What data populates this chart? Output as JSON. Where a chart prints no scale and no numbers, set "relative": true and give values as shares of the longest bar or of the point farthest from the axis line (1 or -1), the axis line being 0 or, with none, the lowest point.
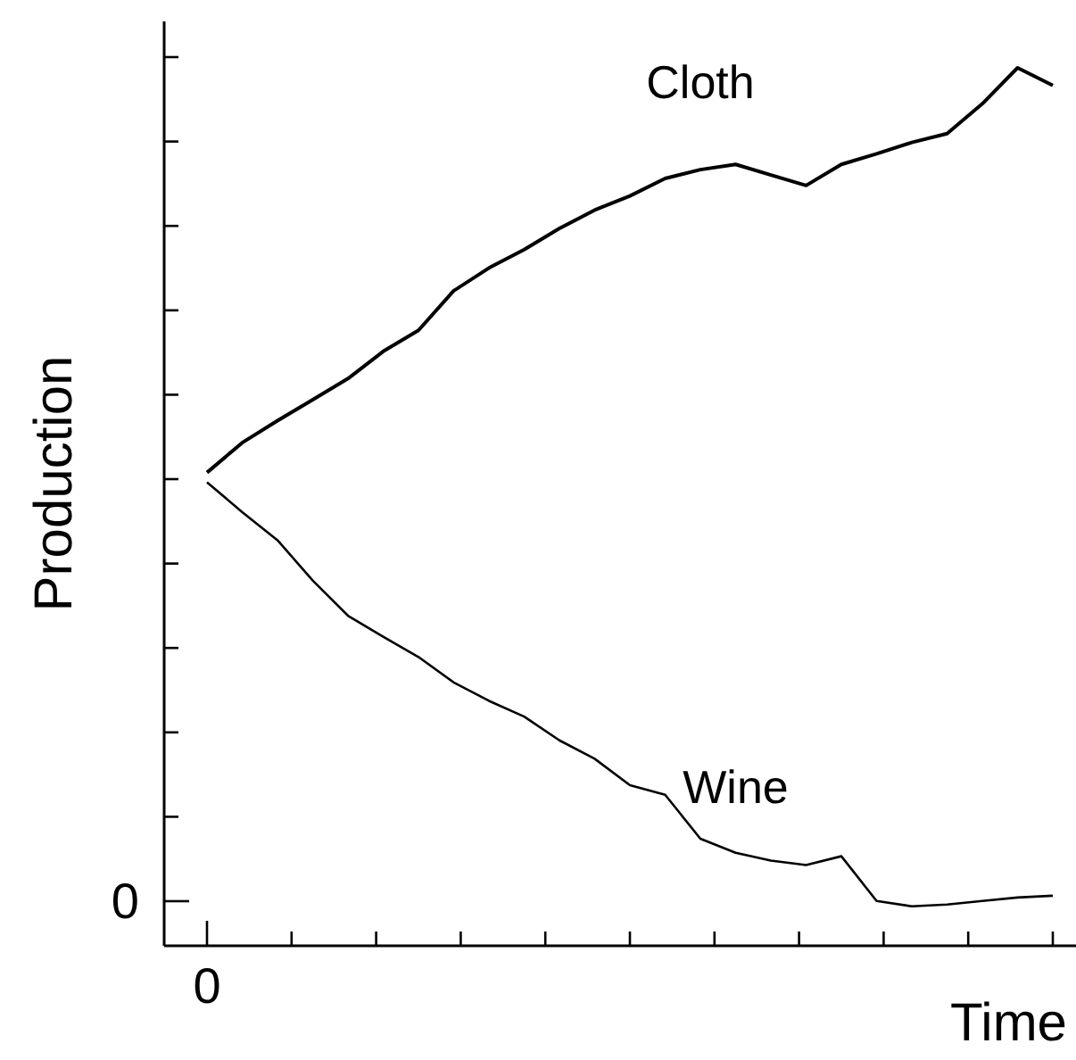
{
  "chart_data": {
    "type": "line",
    "relative": true,
    "xlabel": "Time",
    "ylabel": "Production",
    "categories": [
      null,
      null,
      null,
      null,
      null,
      null,
      null,
      null,
      null,
      null,
      null,
      null,
      null,
      null,
      null,
      null,
      null,
      null,
      null,
      null,
      null,
      null,
      null,
      null,
      null
    ],
    "series": [
      {
        "name": "Cloth",
        "color": "#000000",
        "values": [
          0.539,
          0.573,
          0.598,
          0.622,
          0.646,
          0.677,
          0.701,
          0.746,
          0.772,
          0.793,
          0.817,
          0.838,
          0.854,
          0.874,
          0.884,
          0.89,
          0.878,
          0.866,
          0.89,
          0.902,
          0.915,
          0.925,
          0.959,
          1,
          0.98
        ]
      },
      {
        "name": "Wine",
        "color": "#000000",
        "values": [
          0.528,
          0.494,
          0.462,
          0.416,
          0.376,
          0.352,
          0.329,
          0.3,
          0.279,
          0.261,
          0.234,
          0.213,
          0.183,
          0.172,
          0.122,
          0.106,
          0.097,
          0.092,
          0.102,
          0.051,
          0.045,
          0.047,
          0.051,
          0.055,
          0.057
        ]
      }
    ],
    "annotations": [
      "0",
      "0"
    ],
    "marker": "none",
    "line_style": "solid"
  }
}
